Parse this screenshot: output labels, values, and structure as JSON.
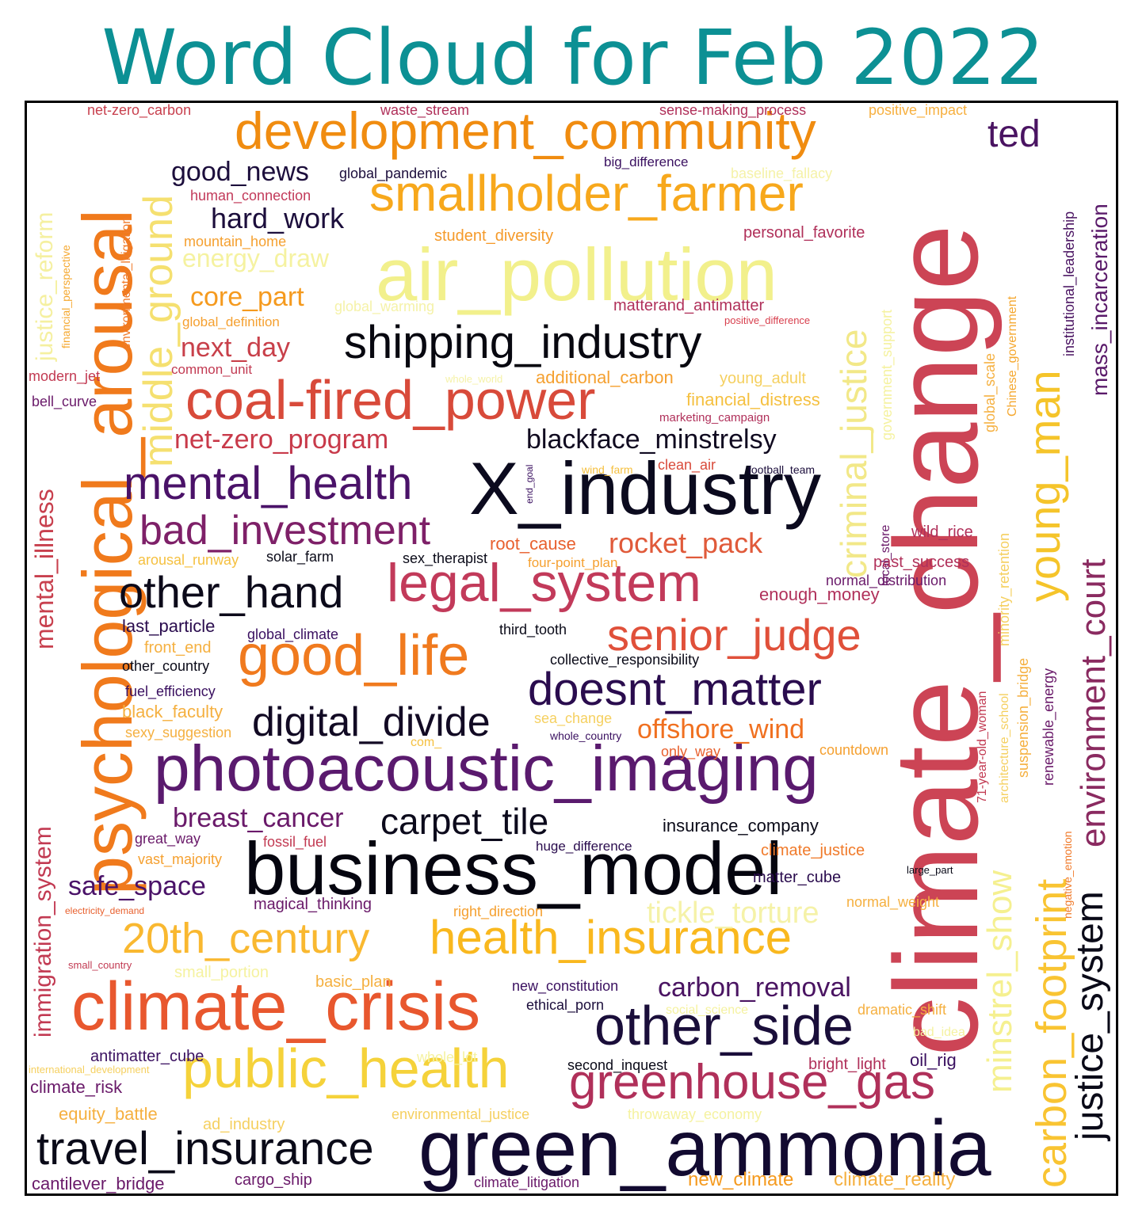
{
  "title": "Word Cloud for Feb 2022",
  "words": [
    {
      "text": "climate_change",
      "color": "#cc4455"
    },
    {
      "text": "air_pollution",
      "color": "#f2f08c"
    },
    {
      "text": "psychological_arousal",
      "color": "#f07a1c"
    },
    {
      "text": "X_industry",
      "color": "#0b0a1e"
    },
    {
      "text": "green_ammonia",
      "color": "#120a30"
    },
    {
      "text": "business_model",
      "color": "#05050f"
    },
    {
      "text": "photoacoustic_imaging",
      "color": "#5a1a6e"
    },
    {
      "text": "climate_crisis",
      "color": "#e8572e"
    },
    {
      "text": "development_community",
      "color": "#f08c10"
    },
    {
      "text": "smallholder_farmer",
      "color": "#f7a81c"
    },
    {
      "text": "coal-fired_power",
      "color": "#d84a3a"
    },
    {
      "text": "shipping_industry",
      "color": "#080810"
    },
    {
      "text": "legal_system",
      "color": "#c23a5a"
    },
    {
      "text": "good_life",
      "color": "#f07a1e"
    },
    {
      "text": "public_health",
      "color": "#f5d23a"
    },
    {
      "text": "other_side",
      "color": "#1a0e3a"
    },
    {
      "text": "health_insurance",
      "color": "#f9b81e"
    },
    {
      "text": "greenhouse_gas",
      "color": "#b0305a"
    },
    {
      "text": "mental_health",
      "color": "#4a1268"
    },
    {
      "text": "bad_investment",
      "color": "#7e2068"
    },
    {
      "text": "other_hand",
      "color": "#0c0a1a"
    },
    {
      "text": "senior_judge",
      "color": "#e0503a"
    },
    {
      "text": "doesnt_matter",
      "color": "#2a0c4e"
    },
    {
      "text": "digital_divide",
      "color": "#120a24"
    },
    {
      "text": "travel_insurance",
      "color": "#0a0a18"
    },
    {
      "text": "middle_ground",
      "color": "#f5e070"
    },
    {
      "text": "young_man",
      "color": "#f5c42a"
    },
    {
      "text": "carbon_footprint",
      "color": "#f9c432"
    },
    {
      "text": "environment_court",
      "color": "#8a2a60"
    },
    {
      "text": "justice_system",
      "color": "#0a0a18"
    },
    {
      "text": "criminal_justice",
      "color": "#f2e888"
    },
    {
      "text": "minstrel_show",
      "color": "#f5f090"
    },
    {
      "text": "20th_century",
      "color": "#f9b830"
    },
    {
      "text": "carpet_tile",
      "color": "#0c0a1c"
    },
    {
      "text": "ted",
      "color": "#4a1462"
    },
    {
      "text": "good_news",
      "color": "#1c0e3c"
    },
    {
      "text": "hard_work",
      "color": "#1c0e3c"
    },
    {
      "text": "energy_draw",
      "color": "#f5f2a0"
    },
    {
      "text": "core_part",
      "color": "#f59a1e"
    },
    {
      "text": "next_day",
      "color": "#c8404a"
    },
    {
      "text": "net-zero_program",
      "color": "#c83a4a"
    },
    {
      "text": "blackface_minstrelsy",
      "color": "#100a20"
    },
    {
      "text": "rocket_pack",
      "color": "#e05a3a"
    },
    {
      "text": "breast_cancer",
      "color": "#6a1a6a"
    },
    {
      "text": "safe_space",
      "color": "#4a1268"
    },
    {
      "text": "offshore_wind",
      "color": "#f07020"
    },
    {
      "text": "carbon_removal",
      "color": "#4a1462"
    },
    {
      "text": "tickle_torture",
      "color": "#f5f2a8"
    },
    {
      "text": "mental_illness",
      "color": "#c8404e"
    },
    {
      "text": "immigration_system",
      "color": "#c23a52"
    },
    {
      "text": "justice_reform",
      "color": "#f5f0a0"
    },
    {
      "text": "mass_incarceration",
      "color": "#5a1a6a"
    },
    {
      "text": "institutional_leadership",
      "color": "#4a1462"
    },
    {
      "text": "net-zero_carbon",
      "color": "#c8404e"
    },
    {
      "text": "waste_stream",
      "color": "#b0305a"
    },
    {
      "text": "sense-making_process",
      "color": "#b0305a"
    },
    {
      "text": "positive_impact",
      "color": "#f7b040"
    },
    {
      "text": "global_pandemic",
      "color": "#1c0e3c"
    },
    {
      "text": "big_difference",
      "color": "#3a1060"
    },
    {
      "text": "baseline_fallacy",
      "color": "#f5f2a8"
    },
    {
      "text": "human_connection",
      "color": "#c23a5a"
    },
    {
      "text": "environmental_litigation",
      "color": "#f07a2a"
    },
    {
      "text": "financial_perspective",
      "color": "#f5a830"
    },
    {
      "text": "mountain_home",
      "color": "#f5a030"
    },
    {
      "text": "student_diversity",
      "color": "#f59a2a"
    },
    {
      "text": "personal_favorite",
      "color": "#b0305a"
    },
    {
      "text": "global_warming",
      "color": "#f5f2a8"
    },
    {
      "text": "global_definition",
      "color": "#f5a030"
    },
    {
      "text": "matterand_antimatter",
      "color": "#b0305a"
    },
    {
      "text": "positive_difference",
      "color": "#d8404e"
    },
    {
      "text": "government_support",
      "color": "#f5f2a0"
    },
    {
      "text": "Chinese_government",
      "color": "#f5a830"
    },
    {
      "text": "global_scale",
      "color": "#f5b040"
    },
    {
      "text": "modern_jet",
      "color": "#c23a52"
    },
    {
      "text": "common_unit",
      "color": "#c23a52"
    },
    {
      "text": "whole_world",
      "color": "#f5f2a8"
    },
    {
      "text": "additional_carbon",
      "color": "#f5a030"
    },
    {
      "text": "young_adult",
      "color": "#f5d060"
    },
    {
      "text": "bell_curve",
      "color": "#6a1a6a"
    },
    {
      "text": "financial_distress",
      "color": "#f5c040"
    },
    {
      "text": "marketing_campaign",
      "color": "#b0305a"
    },
    {
      "text": "end_goal",
      "color": "#3a1060"
    },
    {
      "text": "wind_farm",
      "color": "#f5c040"
    },
    {
      "text": "clean_air",
      "color": "#d84a3a"
    },
    {
      "text": "football_team",
      "color": "#1c0e3c"
    },
    {
      "text": "local_store",
      "color": "#6a1a6a"
    },
    {
      "text": "wild_rice",
      "color": "#b0305a"
    },
    {
      "text": "minority_retention",
      "color": "#f5d060"
    },
    {
      "text": "arousal_runway",
      "color": "#f5c040"
    },
    {
      "text": "solar_farm",
      "color": "#0a0a18"
    },
    {
      "text": "sex_therapist",
      "color": "#0a0a18"
    },
    {
      "text": "root_cause",
      "color": "#e8602e"
    },
    {
      "text": "four-point_plan",
      "color": "#f5a030"
    },
    {
      "text": "past_success",
      "color": "#b0305a"
    },
    {
      "text": "normal_distribution",
      "color": "#6a1a6a"
    },
    {
      "text": "enough_money",
      "color": "#b0305a"
    },
    {
      "text": "last_particle",
      "color": "#2a0c4e"
    },
    {
      "text": "global_climate",
      "color": "#3a1060"
    },
    {
      "text": "third_tooth",
      "color": "#0a0a18"
    },
    {
      "text": "front_end",
      "color": "#f5b040"
    },
    {
      "text": "other_country",
      "color": "#0a0a18"
    },
    {
      "text": "collective_responsibility",
      "color": "#0a0a18"
    },
    {
      "text": "suspension_bridge",
      "color": "#f5b040"
    },
    {
      "text": "renewable_energy",
      "color": "#6a1a6a"
    },
    {
      "text": "architecture_school",
      "color": "#f5d060"
    },
    {
      "text": "71-year-old_woman",
      "color": "#c23a52"
    },
    {
      "text": "fuel_efficiency",
      "color": "#3a1060"
    },
    {
      "text": "black_faculty",
      "color": "#f5b040"
    },
    {
      "text": "sexy_suggestion",
      "color": "#f5b040"
    },
    {
      "text": "sea_change",
      "color": "#f5d060"
    },
    {
      "text": "whole_country",
      "color": "#3a1060"
    },
    {
      "text": "com_",
      "color": "#f5c040"
    },
    {
      "text": "only_way",
      "color": "#e8602e"
    },
    {
      "text": "countdown",
      "color": "#f5a030"
    },
    {
      "text": "insurance_company",
      "color": "#0a0a18"
    },
    {
      "text": "great_way",
      "color": "#6a1a6a"
    },
    {
      "text": "fossil_fuel",
      "color": "#c23a52"
    },
    {
      "text": "huge_difference",
      "color": "#2a0c4e"
    },
    {
      "text": "vast_majority",
      "color": "#f5a030"
    },
    {
      "text": "climate_justice",
      "color": "#f07a2a"
    },
    {
      "text": "large_part",
      "color": "#0a0a18"
    },
    {
      "text": "negative_emotion",
      "color": "#f07a2a"
    },
    {
      "text": "matter_cube",
      "color": "#2a0c4e"
    },
    {
      "text": "electricity_demand",
      "color": "#e8602e"
    },
    {
      "text": "magical_thinking",
      "color": "#6a1a6a"
    },
    {
      "text": "right_direction",
      "color": "#f5a030"
    },
    {
      "text": "normal_weight",
      "color": "#f5b040"
    },
    {
      "text": "small_country",
      "color": "#c23a52"
    },
    {
      "text": "small_portion",
      "color": "#f5f2a0"
    },
    {
      "text": "basic_plan",
      "color": "#f5b040"
    },
    {
      "text": "new_constitution",
      "color": "#3a1060"
    },
    {
      "text": "ethical_porn",
      "color": "#1c0e3c"
    },
    {
      "text": "social_science",
      "color": "#f5f2a0"
    },
    {
      "text": "dramatic_shift",
      "color": "#f5b040"
    },
    {
      "text": "bad_idea",
      "color": "#f5f2a0"
    },
    {
      "text": "antimatter_cube",
      "color": "#3a1060"
    },
    {
      "text": "whole_lot",
      "color": "#f5f2a0"
    },
    {
      "text": "second_inquest",
      "color": "#0a0a18"
    },
    {
      "text": "bright_light",
      "color": "#b0305a"
    },
    {
      "text": "oil_rig",
      "color": "#3a1060"
    },
    {
      "text": "international_development",
      "color": "#f5d060"
    },
    {
      "text": "climate_risk",
      "color": "#6a1a6a"
    },
    {
      "text": "equity_battle",
      "color": "#f5b040"
    },
    {
      "text": "ad_industry",
      "color": "#f5d060"
    },
    {
      "text": "environmental_justice",
      "color": "#f5d060"
    },
    {
      "text": "throwaway_economy",
      "color": "#f5f2a0"
    },
    {
      "text": "cantilever_bridge",
      "color": "#6a1a6a"
    },
    {
      "text": "cargo_ship",
      "color": "#6a1a6a"
    },
    {
      "text": "climate_litigation",
      "color": "#6a1a6a"
    },
    {
      "text": "new_climate",
      "color": "#f59a1e"
    },
    {
      "text": "climate_reality",
      "color": "#f5b040"
    }
  ]
}
